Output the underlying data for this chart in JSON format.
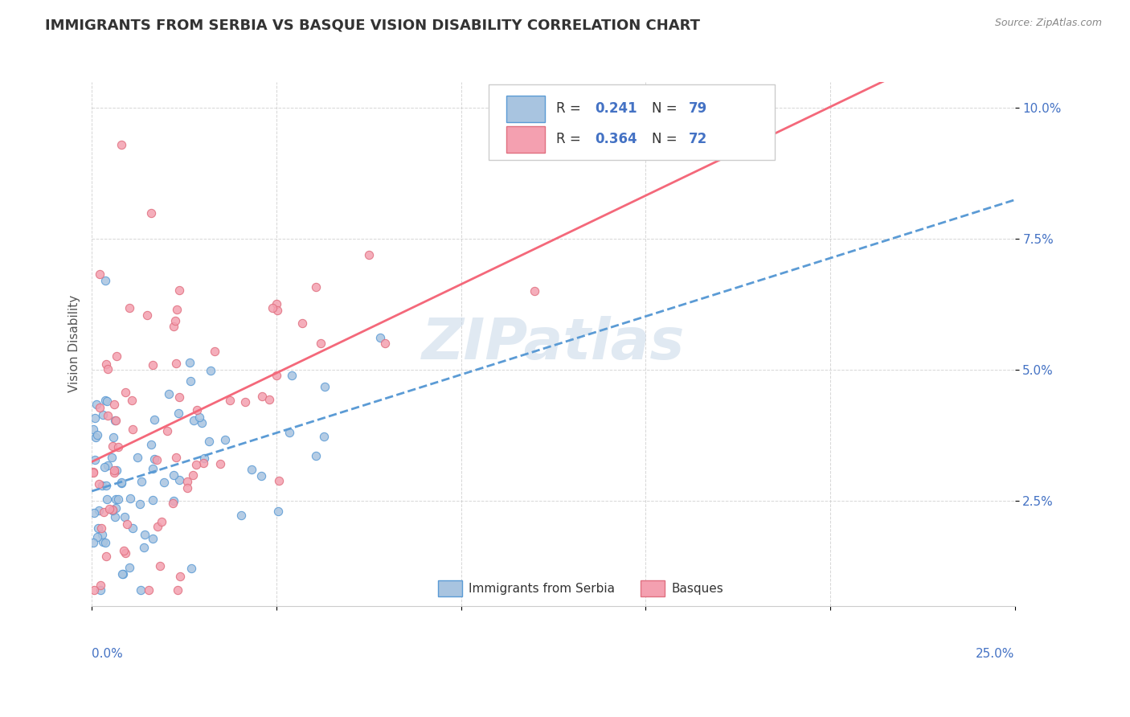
{
  "title": "IMMIGRANTS FROM SERBIA VS BASQUE VISION DISABILITY CORRELATION CHART",
  "source": "Source: ZipAtlas.com",
  "ylabel": "Vision Disability",
  "xmin": 0.0,
  "xmax": 0.25,
  "ymin": 0.005,
  "ymax": 0.105,
  "yticks": [
    0.025,
    0.05,
    0.075,
    0.1
  ],
  "ytick_labels": [
    "2.5%",
    "5.0%",
    "7.5%",
    "10.0%"
  ],
  "r_blue": 0.241,
  "n_blue": 79,
  "r_pink": 0.364,
  "n_pink": 72,
  "color_blue_fill": "#a8c4e0",
  "color_blue_edge": "#5b9bd5",
  "color_pink_fill": "#f4a0b0",
  "color_pink_edge": "#e07080",
  "color_blue_line": "#5b9bd5",
  "color_pink_line": "#f4687a",
  "color_accent": "#4472c4",
  "color_watermark": "#c8d8e8",
  "color_grid": "#cccccc",
  "watermark_text": "ZIPatlas",
  "legend_label1": "Immigrants from Serbia",
  "legend_label2": "Basques"
}
